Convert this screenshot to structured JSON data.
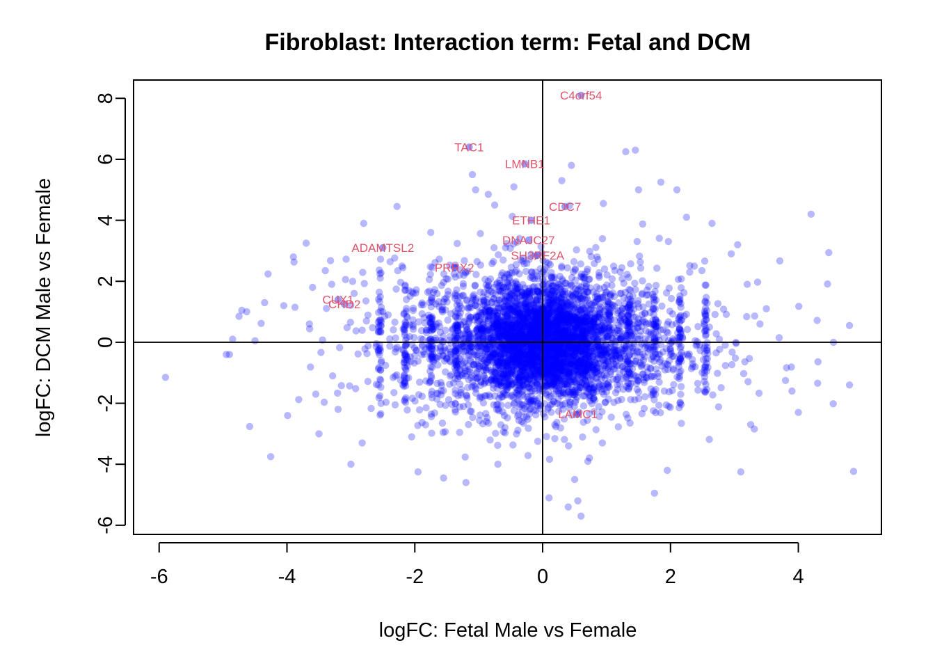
{
  "chart_data": {
    "type": "scatter",
    "title": "Fibroblast: Interaction term: Fetal and DCM",
    "xlabel": "logFC: Fetal Male vs Female",
    "ylabel": "logFC: DCM Male vs Female",
    "xlim": [
      -6.4,
      5.3
    ],
    "ylim": [
      -6.3,
      8.6
    ],
    "x_ticks": [
      -6,
      -4,
      -2,
      0,
      2,
      4
    ],
    "y_ticks": [
      -6,
      -4,
      -2,
      0,
      2,
      4,
      6,
      8
    ],
    "x_tick_labels": [
      "-6",
      "-4",
      "-2",
      "0",
      "2",
      "4"
    ],
    "y_tick_labels": [
      "-6",
      "-4",
      "-2",
      "0",
      "2",
      "4",
      "6",
      "8"
    ],
    "grid": false,
    "reference_lines": {
      "x": 0,
      "y": 0
    },
    "point_color": "#0000ff",
    "label_color": "#df536b",
    "labeled_genes": [
      {
        "name": "C4orf54",
        "x": 0.6,
        "y": 8.1
      },
      {
        "name": "TAC1",
        "x": -1.15,
        "y": 6.4
      },
      {
        "name": "LMNB1",
        "x": -0.28,
        "y": 5.85
      },
      {
        "name": "CDC7",
        "x": 0.35,
        "y": 4.45
      },
      {
        "name": "ETHE1",
        "x": -0.18,
        "y": 4.0
      },
      {
        "name": "ADAMTSL2",
        "x": -2.5,
        "y": 3.1
      },
      {
        "name": "DNAJC27",
        "x": -0.22,
        "y": 3.35
      },
      {
        "name": "SH3RF2A",
        "x": -0.08,
        "y": 2.85
      },
      {
        "name": "PRRX2",
        "x": -1.38,
        "y": 2.45
      },
      {
        "name": "CUX1",
        "x": -3.2,
        "y": 1.4
      },
      {
        "name": "CHD2",
        "x": -3.1,
        "y": 1.25
      },
      {
        "name": "LAMC1",
        "x": 0.55,
        "y": -2.35
      }
    ],
    "outlier_points": [
      [
        -5.9,
        -1.15
      ],
      [
        -4.95,
        -0.4
      ],
      [
        -4.9,
        -0.4
      ],
      [
        -4.85,
        0.1
      ],
      [
        -4.75,
        0.85
      ],
      [
        -4.5,
        0.05
      ],
      [
        -4.35,
        1.3
      ],
      [
        -4.05,
        1.2
      ],
      [
        -3.9,
        2.8
      ],
      [
        -3.7,
        3.25
      ],
      [
        -3.65,
        0.6
      ],
      [
        -3.6,
        1.8
      ],
      [
        -3.55,
        -1.7
      ],
      [
        -3.5,
        -3.0
      ],
      [
        -3.4,
        2.35
      ],
      [
        -3.3,
        1.9
      ],
      [
        -3.2,
        -2.2
      ],
      [
        -3.0,
        -4.0
      ],
      [
        -2.8,
        3.9
      ],
      [
        -2.6,
        -0.05
      ],
      [
        -2.5,
        1.0
      ],
      [
        -2.2,
        2.5
      ],
      [
        -2.05,
        -3.1
      ],
      [
        -1.95,
        -4.25
      ],
      [
        -1.75,
        3.6
      ],
      [
        -1.55,
        -4.45
      ],
      [
        -1.2,
        -4.6
      ],
      [
        -1.1,
        5.5
      ],
      [
        -1.05,
        5.0
      ],
      [
        -0.85,
        4.85
      ],
      [
        -0.75,
        4.5
      ],
      [
        -0.7,
        -4.0
      ],
      [
        -0.45,
        5.1
      ],
      [
        0.1,
        -5.1
      ],
      [
        0.3,
        5.3
      ],
      [
        0.45,
        5.8
      ],
      [
        0.5,
        -4.5
      ],
      [
        0.55,
        -5.2
      ],
      [
        0.6,
        -5.7
      ],
      [
        0.4,
        -5.4
      ],
      [
        0.95,
        4.55
      ],
      [
        1.3,
        6.25
      ],
      [
        1.45,
        6.3
      ],
      [
        1.5,
        5.0
      ],
      [
        1.85,
        5.25
      ],
      [
        1.95,
        -4.2
      ],
      [
        2.1,
        5.0
      ],
      [
        2.25,
        4.1
      ],
      [
        2.65,
        3.9
      ],
      [
        2.95,
        2.9
      ],
      [
        3.05,
        3.2
      ],
      [
        3.1,
        -4.25
      ],
      [
        3.2,
        1.9
      ],
      [
        3.4,
        0.6
      ],
      [
        3.5,
        1.1
      ],
      [
        3.7,
        0.15
      ],
      [
        3.9,
        -1.6
      ],
      [
        4.0,
        -2.3
      ],
      [
        4.2,
        4.2
      ],
      [
        4.55,
        0.0
      ],
      [
        4.8,
        0.55
      ],
      [
        4.8,
        -1.4
      ],
      [
        1.75,
        -4.95
      ],
      [
        -1.3,
        2.2
      ],
      [
        2.3,
        2.3
      ],
      [
        -2.95,
        1.6
      ]
    ]
  }
}
